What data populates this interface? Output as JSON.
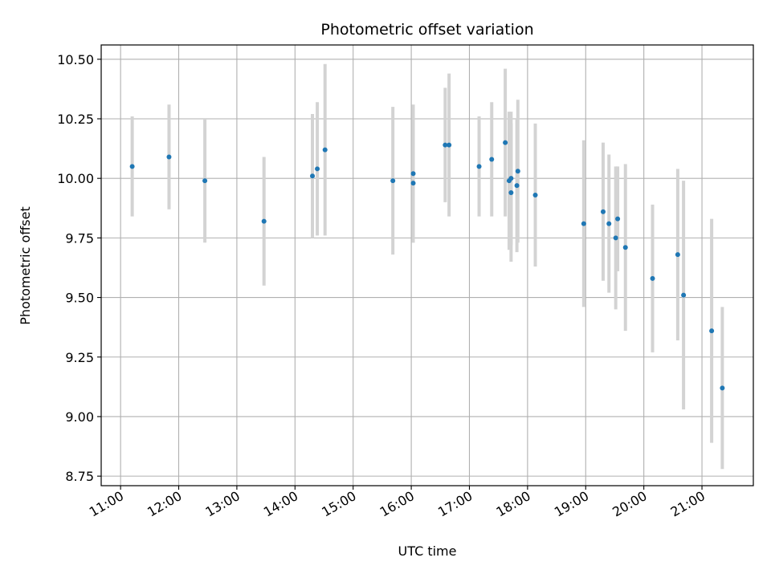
{
  "chart_data": {
    "type": "scatter",
    "title": "Photometric offset variation",
    "xlabel": "UTC time",
    "ylabel": "Photometric offset",
    "x_tick_labels": [
      "11:00",
      "12:00",
      "13:00",
      "14:00",
      "15:00",
      "16:00",
      "17:00",
      "18:00",
      "19:00",
      "20:00",
      "21:00"
    ],
    "y_tick_labels": [
      "8.75",
      "9.00",
      "9.25",
      "9.50",
      "9.75",
      "10.00",
      "10.25",
      "10.50"
    ],
    "xlim": [
      "10:40",
      "21:53"
    ],
    "ylim": [
      8.71,
      10.56
    ],
    "grid": true,
    "colors": {
      "marker": "#1f77b4",
      "errorbar": "#d3d3d3",
      "grid": "#b0b0b0"
    },
    "series": [
      {
        "points": [
          {
            "t": "11:12",
            "y": 10.05,
            "err": 0.21
          },
          {
            "t": "11:50",
            "y": 10.09,
            "err": 0.22
          },
          {
            "t": "12:27",
            "y": 9.99,
            "err": 0.26
          },
          {
            "t": "13:28",
            "y": 9.82,
            "err": 0.27
          },
          {
            "t": "14:18",
            "y": 10.01,
            "err": 0.26
          },
          {
            "t": "14:23",
            "y": 10.04,
            "err": 0.28
          },
          {
            "t": "14:31",
            "y": 10.12,
            "err": 0.36
          },
          {
            "t": "15:41",
            "y": 9.99,
            "err": 0.31
          },
          {
            "t": "16:02",
            "y": 10.02,
            "err": 0.29
          },
          {
            "t": "16:02",
            "y": 9.98,
            "err": 0.25
          },
          {
            "t": "16:35",
            "y": 10.14,
            "err": 0.24
          },
          {
            "t": "16:39",
            "y": 10.14,
            "err": 0.3
          },
          {
            "t": "17:10",
            "y": 10.05,
            "err": 0.21
          },
          {
            "t": "17:23",
            "y": 10.08,
            "err": 0.24
          },
          {
            "t": "17:37",
            "y": 10.15,
            "err": 0.31
          },
          {
            "t": "17:41",
            "y": 9.99,
            "err": 0.29
          },
          {
            "t": "17:43",
            "y": 10.0,
            "err": 0.28
          },
          {
            "t": "17:43",
            "y": 9.94,
            "err": 0.29
          },
          {
            "t": "17:49",
            "y": 9.97,
            "err": 0.28
          },
          {
            "t": "17:50",
            "y": 10.03,
            "err": 0.3
          },
          {
            "t": "18:08",
            "y": 9.93,
            "err": 0.3
          },
          {
            "t": "18:58",
            "y": 9.81,
            "err": 0.35
          },
          {
            "t": "19:18",
            "y": 9.86,
            "err": 0.29
          },
          {
            "t": "19:24",
            "y": 9.81,
            "err": 0.29
          },
          {
            "t": "19:31",
            "y": 9.75,
            "err": 0.3
          },
          {
            "t": "19:33",
            "y": 9.83,
            "err": 0.22
          },
          {
            "t": "19:41",
            "y": 9.71,
            "err": 0.35
          },
          {
            "t": "20:09",
            "y": 9.58,
            "err": 0.31
          },
          {
            "t": "20:35",
            "y": 9.68,
            "err": 0.36
          },
          {
            "t": "20:41",
            "y": 9.51,
            "err": 0.48
          },
          {
            "t": "21:10",
            "y": 9.36,
            "err": 0.47
          },
          {
            "t": "21:21",
            "y": 9.12,
            "err": 0.34
          }
        ]
      }
    ]
  }
}
